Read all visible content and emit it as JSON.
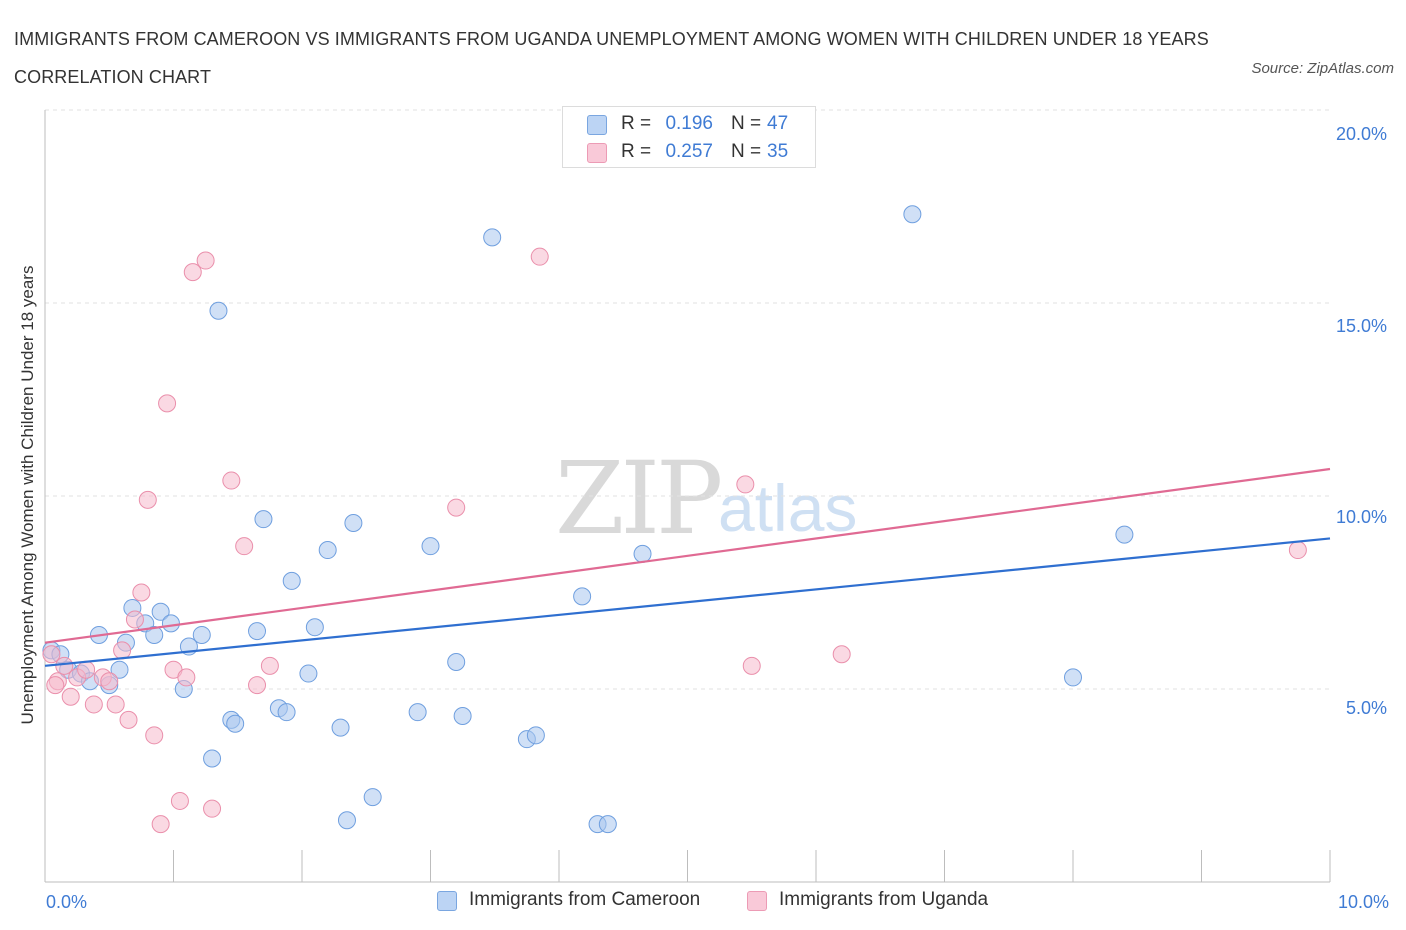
{
  "chart_data": {
    "type": "scatter",
    "title": "IMMIGRANTS FROM CAMEROON VS IMMIGRANTS FROM UGANDA UNEMPLOYMENT AMONG WOMEN WITH CHILDREN UNDER 18 YEARS CORRELATION CHART",
    "source": "Source: ZipAtlas.com",
    "xlabel": "",
    "ylabel": "Unemployment Among Women with Children Under 18 years",
    "xlim": [
      0,
      10
    ],
    "ylim": [
      0,
      20
    ],
    "x_tick_labels": [
      "0.0%",
      "10.0%"
    ],
    "y_tick_labels": [
      "5.0%",
      "10.0%",
      "15.0%",
      "20.0%"
    ],
    "watermark": [
      "ZIP",
      "atlas"
    ],
    "legend": [
      {
        "r_label": "R =",
        "r_value": "0.196",
        "n_label": "N =",
        "n_value": "47"
      },
      {
        "r_label": "R =",
        "r_value": "0.257",
        "n_label": "N =",
        "n_value": "35"
      }
    ],
    "series": [
      {
        "name": "Immigrants from Cameroon",
        "color": "#a9c7ef",
        "stroke": "#6f9fdf",
        "line_color": "#2f6fd0",
        "trend": [
          [
            0,
            5.6
          ],
          [
            10,
            8.9
          ]
        ],
        "points": [
          [
            0.05,
            6.0
          ],
          [
            0.12,
            5.9
          ],
          [
            0.18,
            5.5
          ],
          [
            0.28,
            5.4
          ],
          [
            0.35,
            5.2
          ],
          [
            0.42,
            6.4
          ],
          [
            0.5,
            5.1
          ],
          [
            0.58,
            5.5
          ],
          [
            0.63,
            6.2
          ],
          [
            0.68,
            7.1
          ],
          [
            0.78,
            6.7
          ],
          [
            0.85,
            6.4
          ],
          [
            0.9,
            7.0
          ],
          [
            0.98,
            6.7
          ],
          [
            1.08,
            5.0
          ],
          [
            1.12,
            6.1
          ],
          [
            1.22,
            6.4
          ],
          [
            1.3,
            3.2
          ],
          [
            1.35,
            14.8
          ],
          [
            1.45,
            4.2
          ],
          [
            1.48,
            4.1
          ],
          [
            1.65,
            6.5
          ],
          [
            1.7,
            9.4
          ],
          [
            1.82,
            4.5
          ],
          [
            1.88,
            4.4
          ],
          [
            1.92,
            7.8
          ],
          [
            2.05,
            5.4
          ],
          [
            2.1,
            6.6
          ],
          [
            2.2,
            8.6
          ],
          [
            2.3,
            4.0
          ],
          [
            2.35,
            1.6
          ],
          [
            2.4,
            9.3
          ],
          [
            2.55,
            2.2
          ],
          [
            2.9,
            4.4
          ],
          [
            3.0,
            8.7
          ],
          [
            3.2,
            5.7
          ],
          [
            3.25,
            4.3
          ],
          [
            3.48,
            16.7
          ],
          [
            3.75,
            3.7
          ],
          [
            3.82,
            3.8
          ],
          [
            4.18,
            7.4
          ],
          [
            4.3,
            1.5
          ],
          [
            4.38,
            1.5
          ],
          [
            4.65,
            8.5
          ],
          [
            6.75,
            17.3
          ],
          [
            8.0,
            5.3
          ],
          [
            8.4,
            9.0
          ]
        ]
      },
      {
        "name": "Immigrants from Uganda",
        "color": "#f6b9cc",
        "stroke": "#ea8fab",
        "line_color": "#e06a93",
        "trend": [
          [
            0,
            6.2
          ],
          [
            10,
            10.7
          ]
        ],
        "points": [
          [
            0.05,
            5.9
          ],
          [
            0.1,
            5.2
          ],
          [
            0.15,
            5.6
          ],
          [
            0.2,
            4.8
          ],
          [
            0.25,
            5.3
          ],
          [
            0.32,
            5.5
          ],
          [
            0.38,
            4.6
          ],
          [
            0.45,
            5.3
          ],
          [
            0.5,
            5.2
          ],
          [
            0.55,
            4.6
          ],
          [
            0.6,
            6.0
          ],
          [
            0.65,
            4.2
          ],
          [
            0.7,
            6.8
          ],
          [
            0.75,
            7.5
          ],
          [
            0.8,
            9.9
          ],
          [
            0.85,
            3.8
          ],
          [
            0.9,
            1.5
          ],
          [
            0.95,
            12.4
          ],
          [
            1.0,
            5.5
          ],
          [
            1.05,
            2.1
          ],
          [
            1.1,
            5.3
          ],
          [
            1.15,
            15.8
          ],
          [
            1.25,
            16.1
          ],
          [
            1.3,
            1.9
          ],
          [
            1.45,
            10.4
          ],
          [
            1.55,
            8.7
          ],
          [
            1.65,
            5.1
          ],
          [
            1.75,
            5.6
          ],
          [
            3.2,
            9.7
          ],
          [
            3.85,
            16.2
          ],
          [
            5.45,
            10.3
          ],
          [
            5.5,
            5.6
          ],
          [
            6.2,
            5.9
          ],
          [
            9.75,
            8.6
          ],
          [
            0.08,
            5.1
          ]
        ]
      }
    ]
  }
}
